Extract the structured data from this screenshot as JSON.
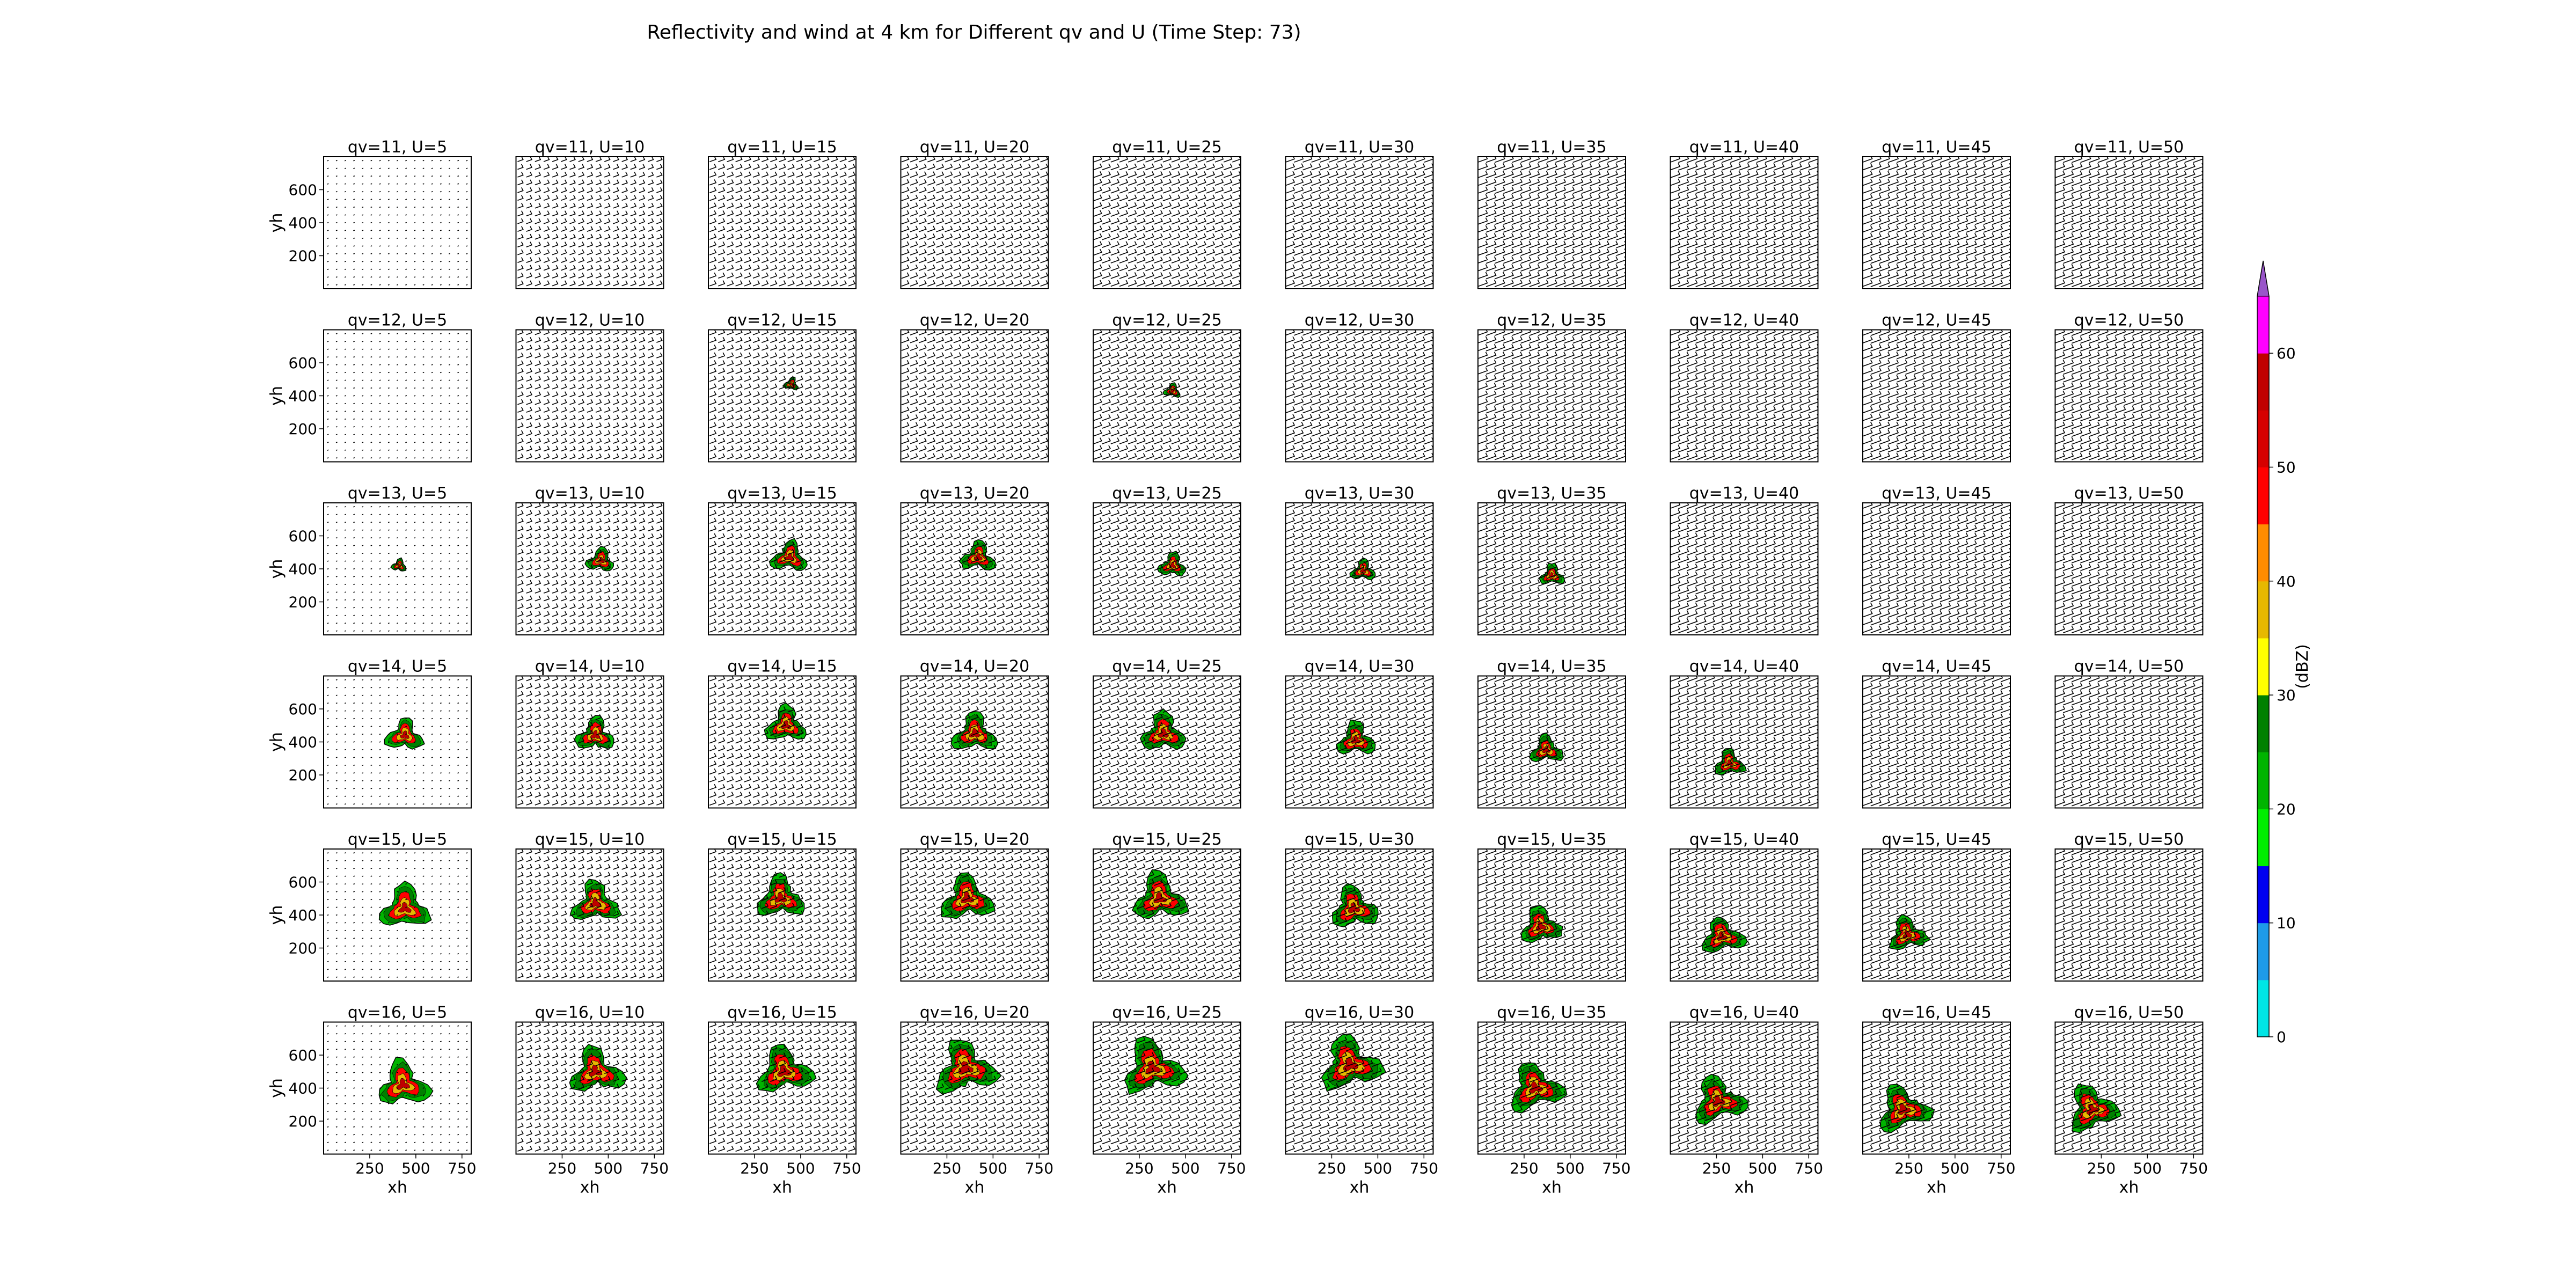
{
  "title": "Reflectivity and wind at 4 km for Different qv and U (Time Step: 73)",
  "chart_data": {
    "type": "heatmap",
    "description_kind": "grid of reflectivity fill-contours with wind barbs",
    "rows_qv": [
      11,
      12,
      13,
      14,
      15,
      16
    ],
    "cols_U": [
      5,
      10,
      15,
      20,
      25,
      30,
      35,
      40,
      45,
      50
    ],
    "panel_title_format": "qv={qv}, U={U}",
    "xlabel": "xh",
    "ylabel": "yh",
    "xticks": [
      250,
      500,
      750
    ],
    "yticks": [
      200,
      400,
      600
    ],
    "xlim": [
      0,
      800
    ],
    "ylim": [
      0,
      800
    ],
    "colorbar": {
      "label": "(dBZ)",
      "levels": [
        0,
        5,
        10,
        15,
        20,
        25,
        30,
        35,
        40,
        45,
        50,
        55,
        60,
        65
      ],
      "ticks": [
        0,
        10,
        20,
        30,
        40,
        50,
        60
      ],
      "extend": "max",
      "colors": [
        "#00e5e5",
        "#1e9be8",
        "#0000f0",
        "#00ee00",
        "#00b400",
        "#008000",
        "#ffff00",
        "#e6b800",
        "#ff8c00",
        "#ff0000",
        "#d60000",
        "#c00000",
        "#ff00ff",
        "#9955c9"
      ]
    },
    "storms": [
      {
        "qv": 12,
        "U": 15,
        "x": 450,
        "y": 470,
        "r": 45
      },
      {
        "qv": 12,
        "U": 25,
        "x": 430,
        "y": 430,
        "r": 50
      },
      {
        "qv": 13,
        "U": 5,
        "x": 410,
        "y": 420,
        "r": 45
      },
      {
        "qv": 13,
        "U": 10,
        "x": 460,
        "y": 450,
        "r": 85
      },
      {
        "qv": 13,
        "U": 15,
        "x": 440,
        "y": 470,
        "r": 110
      },
      {
        "qv": 13,
        "U": 20,
        "x": 420,
        "y": 470,
        "r": 105
      },
      {
        "qv": 13,
        "U": 25,
        "x": 430,
        "y": 420,
        "r": 85
      },
      {
        "qv": 13,
        "U": 30,
        "x": 420,
        "y": 390,
        "r": 75
      },
      {
        "qv": 13,
        "U": 35,
        "x": 400,
        "y": 360,
        "r": 75
      },
      {
        "qv": 14,
        "U": 5,
        "x": 440,
        "y": 440,
        "r": 115
      },
      {
        "qv": 14,
        "U": 10,
        "x": 430,
        "y": 440,
        "r": 120
      },
      {
        "qv": 14,
        "U": 15,
        "x": 420,
        "y": 500,
        "r": 125
      },
      {
        "qv": 14,
        "U": 20,
        "x": 400,
        "y": 450,
        "r": 135
      },
      {
        "qv": 14,
        "U": 25,
        "x": 380,
        "y": 450,
        "r": 140
      },
      {
        "qv": 14,
        "U": 30,
        "x": 380,
        "y": 410,
        "r": 120
      },
      {
        "qv": 14,
        "U": 35,
        "x": 370,
        "y": 350,
        "r": 100
      },
      {
        "qv": 14,
        "U": 40,
        "x": 320,
        "y": 270,
        "r": 95
      },
      {
        "qv": 15,
        "U": 5,
        "x": 440,
        "y": 440,
        "r": 155
      },
      {
        "qv": 15,
        "U": 10,
        "x": 430,
        "y": 470,
        "r": 145
      },
      {
        "qv": 15,
        "U": 15,
        "x": 390,
        "y": 500,
        "r": 150
      },
      {
        "qv": 15,
        "U": 20,
        "x": 360,
        "y": 500,
        "r": 165
      },
      {
        "qv": 15,
        "U": 25,
        "x": 360,
        "y": 500,
        "r": 165
      },
      {
        "qv": 15,
        "U": 30,
        "x": 370,
        "y": 440,
        "r": 150
      },
      {
        "qv": 15,
        "U": 35,
        "x": 340,
        "y": 330,
        "r": 130
      },
      {
        "qv": 15,
        "U": 40,
        "x": 280,
        "y": 270,
        "r": 130
      },
      {
        "qv": 15,
        "U": 45,
        "x": 240,
        "y": 280,
        "r": 120
      },
      {
        "qv": 16,
        "U": 5,
        "x": 430,
        "y": 420,
        "r": 160
      },
      {
        "qv": 16,
        "U": 10,
        "x": 430,
        "y": 500,
        "r": 165
      },
      {
        "qv": 16,
        "U": 15,
        "x": 410,
        "y": 500,
        "r": 170
      },
      {
        "qv": 16,
        "U": 20,
        "x": 350,
        "y": 520,
        "r": 190
      },
      {
        "qv": 16,
        "U": 25,
        "x": 320,
        "y": 520,
        "r": 190
      },
      {
        "qv": 16,
        "U": 30,
        "x": 350,
        "y": 540,
        "r": 190
      },
      {
        "qv": 16,
        "U": 35,
        "x": 310,
        "y": 400,
        "r": 170
      },
      {
        "qv": 16,
        "U": 40,
        "x": 260,
        "y": 320,
        "r": 160
      },
      {
        "qv": 16,
        "U": 45,
        "x": 220,
        "y": 270,
        "r": 160
      },
      {
        "qv": 16,
        "U": 50,
        "x": 200,
        "y": 270,
        "r": 160
      }
    ]
  }
}
